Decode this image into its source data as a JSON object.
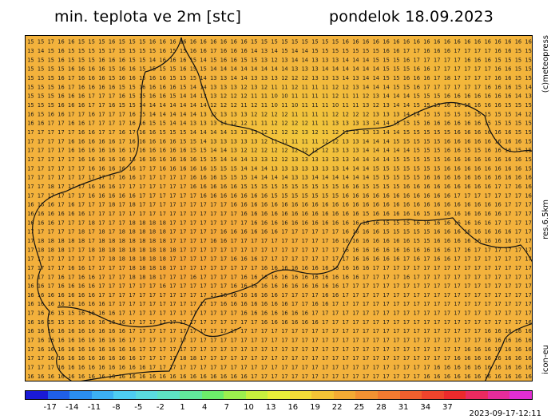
{
  "header": {
    "title_left": "min. teplota ve 2m [stc]",
    "title_right": "pondelok 18.09.2023"
  },
  "side_labels": {
    "copyright": "(c)meteopress",
    "resolution": "res.6.5km",
    "model": "icon-eu"
  },
  "timestamp": "2023-09-17-12:11",
  "colorbar": {
    "colors": [
      "#1a1ad6",
      "#1f5fe8",
      "#2a8ef0",
      "#3cb0f4",
      "#4ecdf2",
      "#5adbe0",
      "#5ee3c4",
      "#62e89c",
      "#6ced6a",
      "#9cf04e",
      "#c8f03e",
      "#e8ee3a",
      "#f3dc38",
      "#f4c436",
      "#f3ab34",
      "#f39232",
      "#f27a30",
      "#f0602e",
      "#ee442c",
      "#ec2a2c",
      "#ea2a60",
      "#e62c9a",
      "#e22ed2"
    ],
    "tick_labels": [
      "-17",
      "-14",
      "-11",
      "-8",
      "-5",
      "-2",
      "1",
      "4",
      "7",
      "10",
      "13",
      "16",
      "19",
      "22",
      "25",
      "28",
      "31",
      "34",
      "37"
    ]
  },
  "grid": {
    "rows": [
      "15 15 17 16 16 15 15 15 16 15 15 15 16 16 16 16 16 16 16 16 16 16 15 15 15 15 15 15 15 15 15 16 16 16 16 16 16 16 16 16 16 16 16 16 16 16 16 16 16 16",
      "13 14 15 16 15 15 15 15 17 15 15 15 15 16 15 15 16 16 17 16 16 16 14 13 14 15 14 14 15 15 15 15 15 15 15 16 16 17 17 16 16 16 17 17 17 17 16 16 15 15",
      "15 15 15 16 15 15 15 16 16 16 15 15 14 16 16 16 15 14 15 16 16 15 15 13 12 13 14 14 13 13 13 14 14 14 15 15 15 16 17 17 17 17 17 16 16 16 15 15 15 15",
      "15 15 15 15 16 16 16 16 15 16 16 15 15 15 15 16 15 15 14 14 14 14 14 14 14 14 13 13 13 14 14 14 14 14 14 15 15 15 16 16 17 17 17 17 17 17 16 16 15 15",
      "15 15 15 16 17 16 16 16 15 16 16 15 16 16 15 15 15 14 13 13 14 14 13 13 13 12 12 12 13 13 13 14 13 14 14 15 15 16 16 16 17 18 17 17 17 17 16 16 15 15",
      "15 15 15 16 17 16 16 16 16 15 15 16 16 16 16 15 14 14 13 13 13 12 13 12 11 11 12 11 11 11 12 12 13 14 14 14 15 15 16 17 17 17 17 17 17 16 16 16 15 14",
      "15 15 15 16 16 16 17 17 17 16 15 15 16 16 15 14 14 13 13 12 12 12 11 11 10 10 11 11 11 11 12 11 11 12 13 14 14 14 15 15 15 16 16 16 16 16 16 16 14 13",
      "15 15 15 16 16 16 17 17 16 15 15 14 14 14 14 14 14 14 12 12 12 11 12 11 10 11 10 11 11 11 10 11 11 13 12 13 14 14 15 15 15 16 16 16 16 16 16 15 15 15",
      "16 15 16 16 17 17 16 17 17 17 16 15 14 14 14 14 14 13 12 13 13 13 12 12 12 12 11 11 11 11 12 12 12 12 13 13 13 14 14 15 15 15 15 15 15 15 15 15 14 12",
      "16 16 17 17 16 16 17 17 17 17 16 16 15 15 14 14 13 13 13 14 12 12 11 11 12 12 12 12 11 11 13 13 13 13 14 14 15 15 15 16 16 16 16 16 16 15 15 15 15 15",
      "17 17 17 17 17 16 16 17 17 16 17 16 16 15 15 15 14 14 14 14 13 13 13 12 12 12 12 13 12 11 12 12 13 13 13 14 14 15 15 15 15 15 16 16 16 16 16 16 15 15",
      "17 17 17 17 16 16 16 16 16 17 16 16 16 16 16 15 15 14 13 13 13 13 13 12 11 11 11 11 11 12 12 13 13 14 14 14 15 15 15 15 15 16 16 16 16 16 16 16 16 15",
      "17 17 17 17 16 16 16 16 16 16 17 16 16 16 16 16 15 15 14 14 13 12 12 12 12 12 12 12 12 12 13 13 13 14 14 14 14 14 15 15 15 16 16 15 15 16 16 16 15 15",
      "17 17 17 17 17 16 16 16 16 16 16 16 16 16 16 16 16 15 15 14 14 14 13 13 12 12 13 13 13 13 13 13 14 14 14 14 15 15 15 15 15 16 16 16 16 16 16 16 16 15",
      "17 17 17 17 17 17 16 16 16 16 16 17 17 16 16 16 16 16 15 15 15 14 14 14 13 13 13 13 13 13 13 14 14 14 15 15 15 15 15 15 15 16 16 16 16 16 16 16 16 15",
      "17 17 17 17 17 17 17 17 17 16 16 17 17 17 17 17 16 16 16 15 15 15 14 14 14 14 13 13 14 14 14 14 14 14 15 15 15 15 15 16 16 16 16 16 16 16 16 16 16 16",
      "17 17 18 17 17 17 16 16 16 17 17 17 17 17 17 17 16 16 16 16 16 15 15 15 15 15 15 15 15 15 15 16 16 15 15 15 15 16 16 16 16 16 16 16 16 16 17 17 16 16",
      "17 17 17 17 17 17 16 16 16 16 16 17 17 17 17 17 17 16 16 16 16 16 16 16 15 15 15 15 15 15 15 16 16 16 16 16 16 16 16 16 16 16 17 17 17 17 17 17 17 16",
      "16 16 16 17 16 17 17 17 18 17 18 17 17 17 17 17 17 17 17 17 16 16 16 16 16 16 16 16 16 16 16 16 16 16 16 16 16 16 16 16 16 16 16 16 16 16 16 17 17 17",
      "16 16 16 16 16 16 17 17 17 17 17 17 17 17 17 17 17 17 17 17 17 16 16 16 16 16 16 16 16 16 16 16 16 15 16 16 16 16 16 15 16 16 16 16 16 16 16 17 17 17",
      "16 16 16 17 17 17 18 17 17 17 18 18 18 18 17 17 17 17 17 17 17 17 16 16 16 16 16 16 16 16 16 16 16 16 16 15 15 15 16 16 16 16 16 16 16 16 17 17 17 17",
      "17 17 17 17 17 18 17 18 17 18 18 18 18 18 17 17 17 17 17 16 16 16 16 16 16 17 17 17 17 17 17 16 16 16 16 15 15 15 15 15 16 16 16 16 16 16 16 16 17 17",
      "17 18 18 18 18 18 17 18 18 18 18 18 18 18 17 17 17 17 16 16 17 17 17 17 17 17 17 17 17 17 16 16 16 16 16 16 16 16 15 15 16 16 16 16 16 16 16 16 17 17",
      "17 18 18 18 17 17 18 18 18 18 18 18 18 18 18 17 17 17 17 17 17 17 17 17 17 17 17 17 17 17 17 16 16 16 16 16 16 16 16 16 16 16 17 16 17 17 17 17 17 17",
      "17 17 17 17 17 17 17 17 18 18 18 18 18 18 17 17 17 17 17 17 16 16 16 17 17 17 17 17 17 17 17 17 16 16 16 16 16 17 16 17 16 16 17 17 17 17 17 17 17 17",
      "17 17 17 17 16 16 17 17 17 17 18 18 18 18 17 17 17 17 17 17 17 17 17 16 16 16 16 16 16 16 16 16 16 16 17 17 17 17 17 17 17 17 17 17 17 17 17 17 17 17",
      "17 17 17 16 17 16 16 17 17 17 18 18 18 17 17 17 16 17 17 17 17 16 16 16 16 16 16 16 16 16 16 16 16 17 17 17 17 16 17 17 17 17 17 17 17 17 17 17 17 17",
      "16 16 17 16 16 16 16 17 17 17 17 17 17 16 17 17 17 17 17 17 16 16 16 16 16 16 16 16 16 16 16 17 17 17 17 17 17 17 17 17 17 17 17 17 17 17 17 17 17 17",
      "16 16 16 16 16 16 16 17 17 17 17 17 17 17 17 17 17 17 17 16 16 16 16 16 16 17 17 17 17 16 16 17 17 17 17 17 17 17 17 17 17 17 17 17 17 17 17 17 17 17",
      "16 16 16 16 16 16 16 16 17 17 17 17 17 17 17 17 17 17 17 16 16 16 16 16 16 16 17 17 16 16 17 17 17 17 17 17 17 17 17 17 17 17 17 17 17 17 17 17 17 17",
      "17 16 16 15 15 16 16 16 16 17 17 17 17 17 17 17 17 17 17 17 17 16 16 16 16 16 16 16 17 17 17 17 17 17 17 17 17 17 17 17 17 17 17 17 17 17 17 17 17 17",
      "16 16 15 15 15 16 16 16 16 16 17 17 17 17 17 17 17 17 17 17 17 17 17 16 16 16 16 16 16 17 17 17 17 17 17 17 17 17 17 17 17 17 17 17 17 17 17 17 17 16",
      "16 16 16 16 16 16 16 16 16 16 17 17 17 17 17 17 17 17 17 17 17 17 17 17 17 17 17 17 17 17 17 17 17 17 17 17 17 17 17 17 17 17 17 17 17 16 16 16 16 16",
      "17 16 16 16 16 16 16 16 16 16 17 17 17 17 17 17 17 17 17 17 17 17 17 17 17 17 17 17 17 17 17 17 17 17 17 17 17 17 17 17 17 17 17 17 17 16 16 16 16 16",
      "17 16 16 16 16 16 16 16 16 16 16 17 17 17 17 17 17 17 17 17 17 17 17 17 17 17 17 17 17 17 17 17 17 17 17 17 17 17 17 17 17 17 17 16 16 16 16 16 16 16",
      "17 17 16 16 16 16 16 16 16 16 16 17 17 17 17 18 18 17 17 17 17 17 17 17 17 17 17 17 17 17 17 17 17 17 17 17 17 17 17 17 17 17 16 16 16 16 16 16 16 16",
      "17 17 17 16 16 16 16 16 16 16 16 16 17 17 17 17 17 17 17 17 17 17 17 17 17 17 17 17 17 17 17 17 17 17 17 17 17 17 17 17 16 16 16 16 16 16 16 16 16 16",
      "16 16 16 16 16 16 16 16 16 16 16 16 16 16 16 16 16 16 16 16 16 16 17 17 17 17 17 17 17 17 17 17 17 17 17 17 17 17 17 16 16 16 16 16 16 16 16 16 16 16"
    ]
  }
}
